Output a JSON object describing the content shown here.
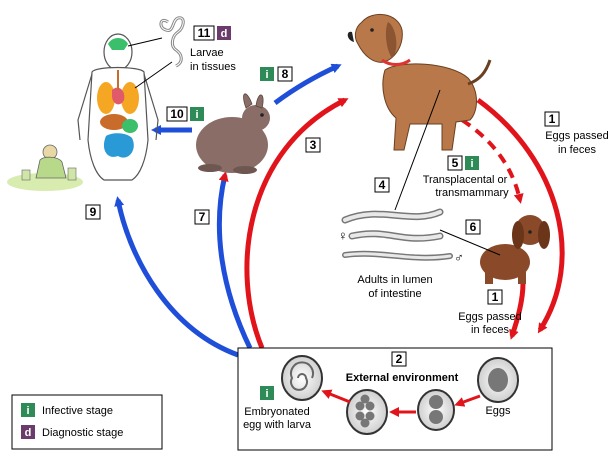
{
  "colors": {
    "infective_badge": "#2e8b57",
    "diagnostic_badge": "#6b3c6b",
    "human_path_arrow": "#1f4ed8",
    "canine_path_arrow": "#e0141a"
  },
  "steps": {
    "s1a": {
      "num": "1",
      "text1": "Eggs passed",
      "text2": "in feces"
    },
    "s1b": {
      "num": "1",
      "text1": "Eggs passed",
      "text2": "in feces"
    },
    "s2": {
      "num": "2",
      "text": "External environment"
    },
    "s3": {
      "num": "3"
    },
    "s4": {
      "num": "4"
    },
    "s5": {
      "num": "5",
      "badge": "i",
      "text1": "Transplacental or",
      "text2": "transmammary"
    },
    "s6": {
      "num": "6"
    },
    "s7": {
      "num": "7"
    },
    "s8": {
      "num": "8",
      "badge": "i"
    },
    "s9": {
      "num": "9"
    },
    "s10": {
      "num": "10",
      "badge": "i"
    },
    "s11": {
      "num": "11",
      "badge": "d",
      "text1": "Larvae",
      "text2": "in tissues"
    }
  },
  "labels": {
    "adults1": "Adults in lumen",
    "adults2": "of intestine",
    "female": "♀",
    "male": "♂",
    "eggs": "Eggs",
    "embryo1": "Embryonated",
    "embryo2": "egg with larva",
    "embryo_badge": "i"
  },
  "legend": {
    "infective_badge": "i",
    "infective_label": "Infective stage",
    "diagnostic_badge": "d",
    "diagnostic_label": "Diagnostic stage"
  }
}
